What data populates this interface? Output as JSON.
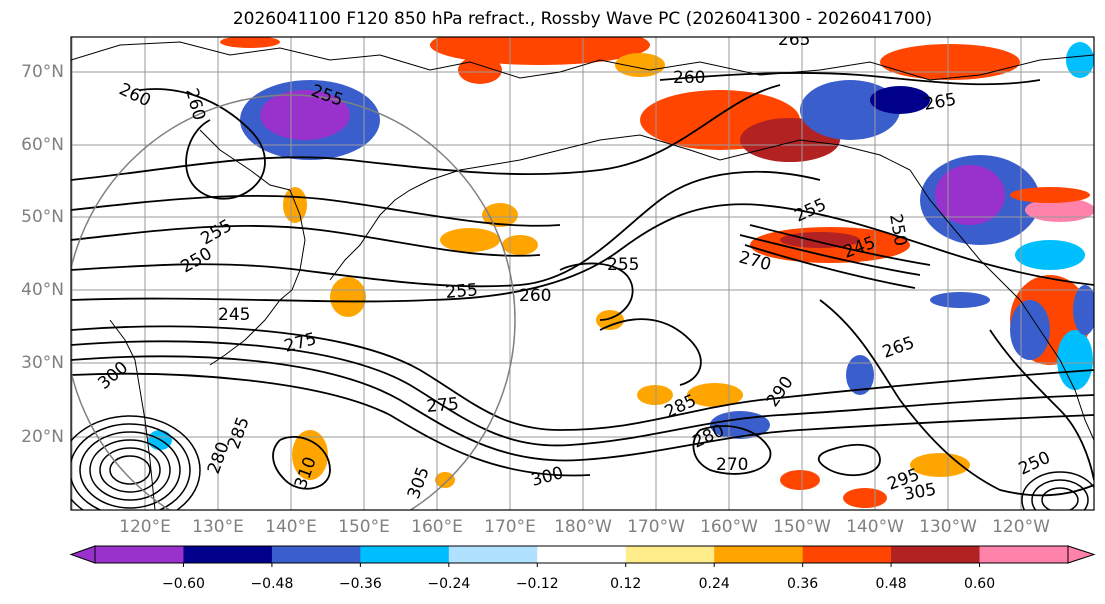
{
  "title": "2026041100 F120 850 hPa refract., Rossby Wave PC (2026041300 - 2026041700)",
  "lat_labels": [
    "70°N",
    "60°N",
    "50°N",
    "40°N",
    "30°N",
    "20°N"
  ],
  "lon_labels": [
    "120°E",
    "130°E",
    "140°E",
    "150°E",
    "160°E",
    "170°E",
    "180°W",
    "170°W",
    "160°W",
    "150°W",
    "140°W",
    "130°W",
    "120°W"
  ],
  "contour_labels": [
    "265",
    "260",
    "260",
    "255",
    "260",
    "265",
    "255",
    "255",
    "250",
    "245",
    "255",
    "260",
    "255",
    "245",
    "270",
    "250",
    "275",
    "265",
    "300",
    "275",
    "285",
    "290",
    "280",
    "270",
    "295",
    "305",
    "305",
    "300",
    "250",
    "285",
    "310",
    "280"
  ],
  "colorbar": {
    "tick_labels": [
      "−0.60",
      "−0.48",
      "−0.36",
      "−0.24",
      "−0.12",
      "0.12",
      "0.24",
      "0.36",
      "0.48",
      "0.60"
    ],
    "colors": [
      "#9932CC",
      "#00008B",
      "#3A5FCD",
      "#00BFFF",
      "#B0E2FF",
      "#FFFFFF",
      "#FFEC8B",
      "#FFA500",
      "#FF4500",
      "#B22222",
      "#FF82AB"
    ],
    "extend": "both"
  },
  "colors": {
    "positive_accent": "#FF4500",
    "negative_accent": "#3A5FCD",
    "contour": "#000000",
    "axis_label": "#808080",
    "circle": "#808080"
  }
}
